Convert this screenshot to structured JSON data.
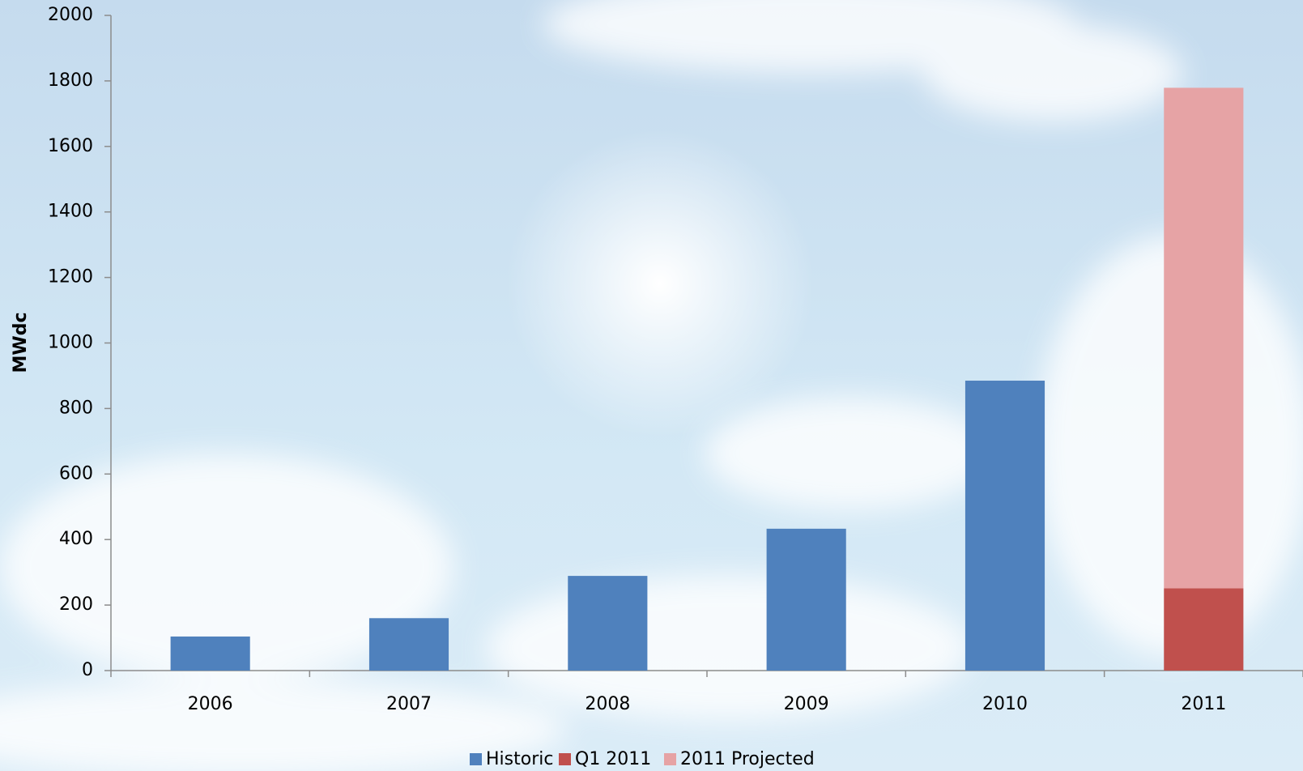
{
  "chart_data": {
    "type": "stacked_bar",
    "y_label": "MWdc",
    "categories": [
      "2006",
      "2007",
      "2008",
      "2009",
      "2010",
      "2011"
    ],
    "series": [
      {
        "name": "Historic",
        "color": "#4f81bd",
        "values": [
          104,
          160,
          289,
          433,
          885,
          null
        ]
      },
      {
        "name": "Q1 2011",
        "color": "#c0504d",
        "values": [
          null,
          null,
          null,
          null,
          null,
          251
        ]
      },
      {
        "name": "2011 Projected",
        "color": "#e6a3a5",
        "values": [
          null,
          null,
          null,
          null,
          null,
          1528
        ]
      }
    ],
    "ylim": [
      0,
      2000
    ],
    "yticks": [
      0,
      200,
      400,
      600,
      800,
      1000,
      1200,
      1400,
      1600,
      1800,
      2000
    ],
    "legend": "bottom"
  }
}
